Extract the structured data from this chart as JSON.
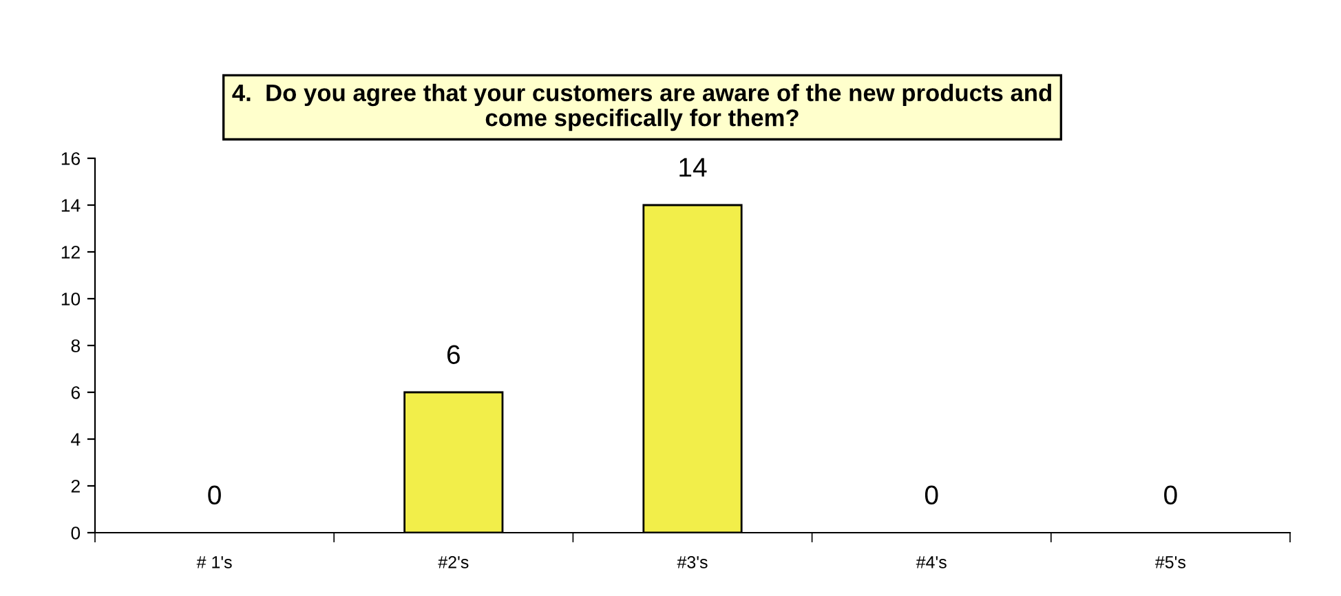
{
  "chart_data": {
    "type": "bar",
    "title": "4.  Do you agree that your customers are aware of the new products and\ncome specifically for them?",
    "categories": [
      "# 1's",
      "#2's",
      "#3's",
      "#4's",
      "#5's"
    ],
    "values": [
      0,
      6,
      14,
      0,
      0
    ],
    "color": "#f2ee4a",
    "ylim": [
      0,
      16
    ],
    "yticks": [
      0,
      2,
      4,
      6,
      8,
      10,
      12,
      14,
      16
    ],
    "grid": false,
    "data_labels": true
  }
}
